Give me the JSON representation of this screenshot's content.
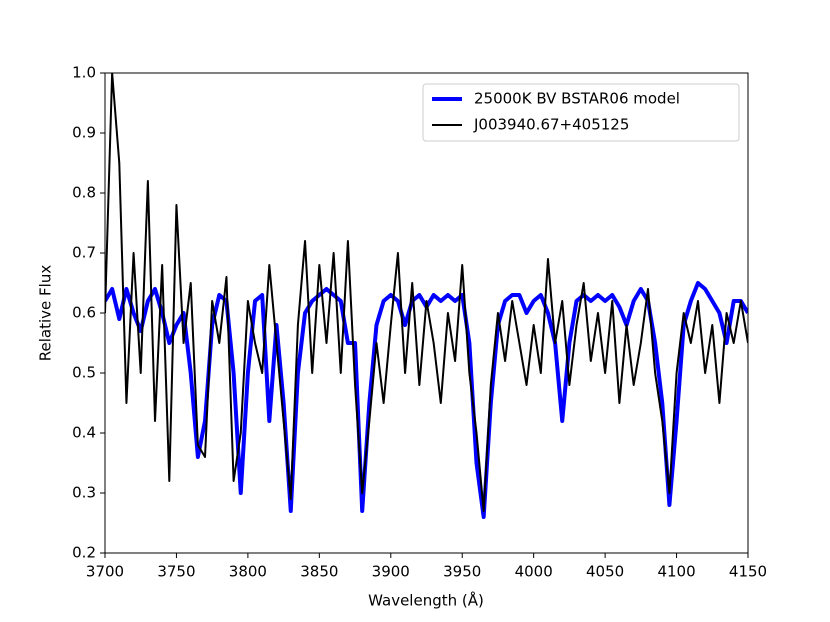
{
  "chart_data": {
    "type": "line",
    "xlabel": "Wavelength (Å)",
    "ylabel": "Relative Flux",
    "x": [
      3700,
      3705,
      3710,
      3715,
      3720,
      3725,
      3730,
      3735,
      3740,
      3745,
      3750,
      3755,
      3760,
      3765,
      3770,
      3775,
      3780,
      3785,
      3790,
      3795,
      3800,
      3805,
      3810,
      3815,
      3820,
      3825,
      3830,
      3835,
      3840,
      3845,
      3850,
      3855,
      3860,
      3865,
      3870,
      3875,
      3880,
      3885,
      3890,
      3895,
      3900,
      3905,
      3910,
      3915,
      3920,
      3925,
      3930,
      3935,
      3940,
      3945,
      3950,
      3955,
      3960,
      3965,
      3970,
      3975,
      3980,
      3985,
      3990,
      3995,
      4000,
      4005,
      4010,
      4015,
      4020,
      4025,
      4030,
      4035,
      4040,
      4045,
      4050,
      4055,
      4060,
      4065,
      4070,
      4075,
      4080,
      4085,
      4090,
      4095,
      4100,
      4105,
      4110,
      4115,
      4120,
      4125,
      4130,
      4135,
      4140,
      4145,
      4150
    ],
    "series": [
      {
        "name": "25000K BV BSTAR06 model",
        "color": "#0000ff",
        "width": 4,
        "values": [
          0.62,
          0.64,
          0.59,
          0.64,
          0.6,
          0.57,
          0.62,
          0.64,
          0.6,
          0.55,
          0.58,
          0.6,
          0.5,
          0.36,
          0.42,
          0.58,
          0.63,
          0.62,
          0.5,
          0.3,
          0.5,
          0.62,
          0.63,
          0.42,
          0.58,
          0.45,
          0.27,
          0.5,
          0.6,
          0.62,
          0.63,
          0.64,
          0.63,
          0.62,
          0.55,
          0.55,
          0.27,
          0.45,
          0.58,
          0.62,
          0.63,
          0.62,
          0.58,
          0.62,
          0.63,
          0.61,
          0.63,
          0.62,
          0.63,
          0.62,
          0.63,
          0.55,
          0.35,
          0.26,
          0.45,
          0.58,
          0.62,
          0.63,
          0.63,
          0.6,
          0.62,
          0.63,
          0.6,
          0.55,
          0.42,
          0.55,
          0.62,
          0.63,
          0.62,
          0.63,
          0.62,
          0.63,
          0.61,
          0.58,
          0.62,
          0.64,
          0.62,
          0.55,
          0.45,
          0.28,
          0.42,
          0.58,
          0.62,
          0.65,
          0.64,
          0.62,
          0.6,
          0.55,
          0.62,
          0.62,
          0.6
        ]
      },
      {
        "name": "J003940.67+405125",
        "color": "#000000",
        "width": 2,
        "values": [
          0.6,
          1.0,
          0.85,
          0.45,
          0.7,
          0.5,
          0.82,
          0.42,
          0.68,
          0.32,
          0.78,
          0.55,
          0.65,
          0.38,
          0.36,
          0.62,
          0.55,
          0.66,
          0.32,
          0.4,
          0.62,
          0.55,
          0.5,
          0.68,
          0.55,
          0.42,
          0.29,
          0.58,
          0.72,
          0.5,
          0.68,
          0.55,
          0.7,
          0.5,
          0.72,
          0.48,
          0.3,
          0.42,
          0.55,
          0.45,
          0.58,
          0.7,
          0.5,
          0.65,
          0.48,
          0.62,
          0.55,
          0.45,
          0.6,
          0.52,
          0.68,
          0.5,
          0.4,
          0.27,
          0.48,
          0.6,
          0.52,
          0.62,
          0.55,
          0.48,
          0.58,
          0.5,
          0.69,
          0.55,
          0.62,
          0.48,
          0.58,
          0.65,
          0.52,
          0.6,
          0.5,
          0.62,
          0.45,
          0.58,
          0.48,
          0.55,
          0.64,
          0.5,
          0.42,
          0.3,
          0.5,
          0.6,
          0.55,
          0.62,
          0.5,
          0.58,
          0.45,
          0.6,
          0.55,
          0.62,
          0.55
        ]
      }
    ],
    "xlim": [
      3700,
      4150
    ],
    "xticks": [
      3700,
      3750,
      3800,
      3850,
      3900,
      3950,
      4000,
      4050,
      4100,
      4150
    ],
    "ylim": [
      0.2,
      1.0
    ],
    "yticks": [
      0.2,
      0.3,
      0.4,
      0.5,
      0.6,
      0.7,
      0.8,
      0.9,
      {
        "value": 1,
        "label": "1.0"
      }
    ],
    "grid": false,
    "legend": "upper right"
  }
}
